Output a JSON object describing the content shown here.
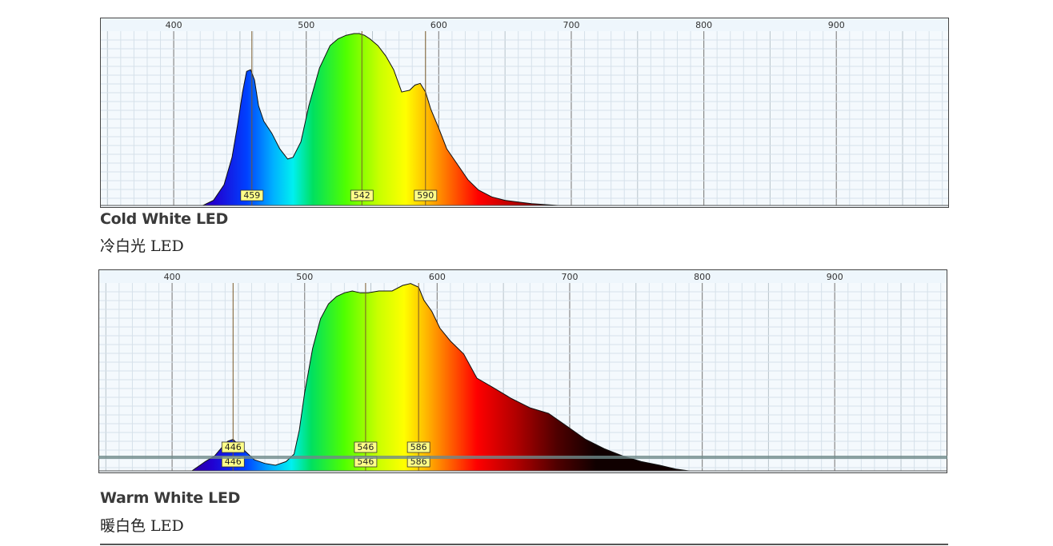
{
  "chart_data": [
    {
      "type": "area",
      "title": "Cold White LED",
      "subtitle": "冷白光 LED",
      "xlim": [
        345,
        985
      ],
      "ylim": [
        0,
        1
      ],
      "x_ticks": [
        400,
        500,
        600,
        700,
        800,
        900
      ],
      "grid": true,
      "fill": "visible spectrum gradient",
      "peaks": [
        459,
        542,
        590
      ],
      "series": [
        {
          "x": [
            422,
            430,
            438,
            444,
            448,
            452,
            455,
            458,
            461,
            464,
            468,
            474,
            480,
            486,
            490,
            496,
            502,
            510,
            518,
            524,
            530,
            536,
            540,
            544,
            548,
            554,
            560,
            566,
            572,
            578,
            582,
            586,
            590,
            594,
            600,
            606,
            614,
            622,
            630,
            640,
            650,
            660,
            670,
            680,
            690
          ],
          "y": [
            0.0,
            0.03,
            0.12,
            0.28,
            0.46,
            0.66,
            0.78,
            0.79,
            0.73,
            0.58,
            0.49,
            0.42,
            0.33,
            0.27,
            0.28,
            0.37,
            0.58,
            0.8,
            0.93,
            0.97,
            0.99,
            1.0,
            1.0,
            0.99,
            0.97,
            0.93,
            0.87,
            0.79,
            0.66,
            0.67,
            0.7,
            0.71,
            0.66,
            0.56,
            0.45,
            0.33,
            0.24,
            0.15,
            0.09,
            0.05,
            0.03,
            0.02,
            0.01,
            0.005,
            0.0
          ]
        }
      ]
    },
    {
      "type": "area",
      "title": "Warm White LED",
      "subtitle": "暖白色 LED",
      "xlim": [
        345,
        985
      ],
      "ylim": [
        0,
        1
      ],
      "x_ticks": [
        400,
        500,
        600,
        700,
        800,
        900
      ],
      "grid": true,
      "fill": "visible spectrum gradient",
      "peaks": [
        446,
        546,
        586
      ],
      "series": [
        {
          "x": [
            415,
            425,
            432,
            438,
            442,
            446,
            450,
            456,
            462,
            470,
            478,
            486,
            492,
            496,
            500,
            506,
            512,
            518,
            524,
            530,
            536,
            542,
            548,
            556,
            566,
            574,
            580,
            586,
            590,
            596,
            602,
            610,
            620,
            630,
            642,
            656,
            670,
            684,
            698,
            712,
            726,
            740,
            754,
            768,
            780,
            790
          ],
          "y": [
            0.0,
            0.05,
            0.08,
            0.13,
            0.16,
            0.17,
            0.14,
            0.1,
            0.06,
            0.04,
            0.03,
            0.05,
            0.09,
            0.22,
            0.42,
            0.66,
            0.82,
            0.9,
            0.94,
            0.96,
            0.97,
            0.96,
            0.96,
            0.97,
            0.97,
            1.0,
            1.01,
            0.99,
            0.92,
            0.86,
            0.77,
            0.7,
            0.63,
            0.5,
            0.45,
            0.39,
            0.34,
            0.31,
            0.24,
            0.17,
            0.12,
            0.08,
            0.05,
            0.03,
            0.01,
            0.0
          ]
        }
      ]
    }
  ],
  "captions": {
    "cold_title": "Cold White LED",
    "cold_sub": "冷白光 LED",
    "warm_title": "Warm White LED",
    "warm_sub": "暖白色 LED"
  }
}
